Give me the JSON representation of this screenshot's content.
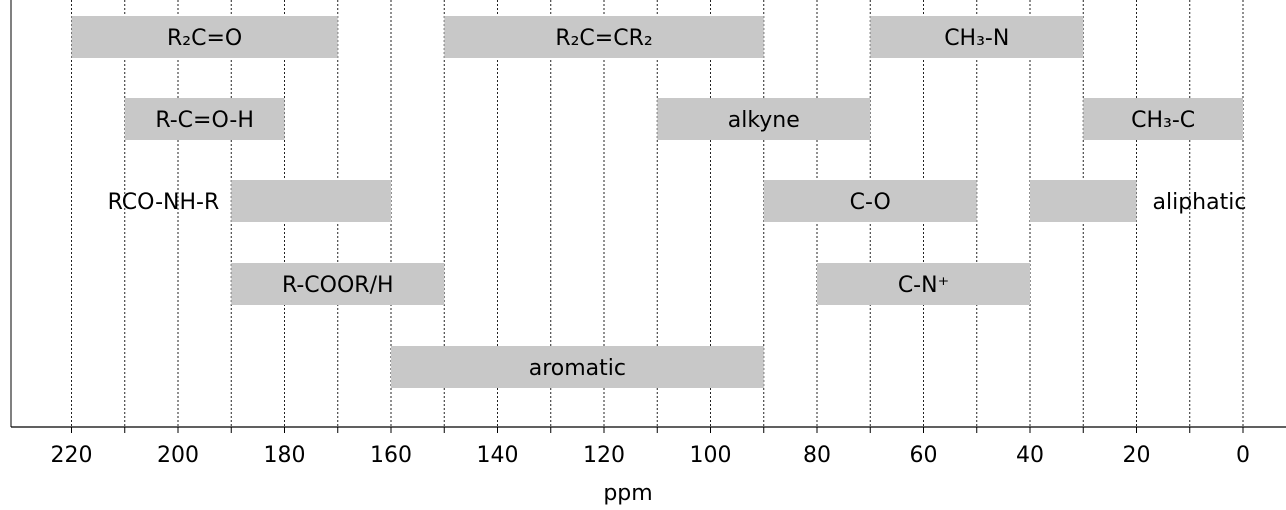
{
  "chart_data": {
    "type": "bar",
    "orientation": "horizontal-range",
    "xlabel": "ppm",
    "xlim": [
      220,
      0
    ],
    "x_reversed": true,
    "xticks": [
      220,
      200,
      180,
      160,
      140,
      120,
      100,
      80,
      60,
      40,
      20,
      0
    ],
    "bar_color": "#c8c8c8",
    "bars": [
      {
        "name": "R2C=O",
        "label": "R₂C=O",
        "start": 220,
        "end": 170,
        "row": 0
      },
      {
        "name": "R2C=CR2",
        "label": "R₂C=CR₂",
        "start": 150,
        "end": 90,
        "row": 0
      },
      {
        "name": "CH3-N",
        "label": "CH₃-N",
        "start": 70,
        "end": 30,
        "row": 0
      },
      {
        "name": "R-C=O-H",
        "label": "R-C=O-H",
        "start": 210,
        "end": 180,
        "row": 1
      },
      {
        "name": "alkyne",
        "label": "alkyne",
        "start": 110,
        "end": 70,
        "row": 1
      },
      {
        "name": "CH3-C",
        "label": "CH₃-C",
        "start": 30,
        "end": 0,
        "row": 1
      },
      {
        "name": "RCO-NH-R",
        "label": "RCO-NH-R",
        "start": 190,
        "end": 160,
        "row": 2,
        "label_outside": "left"
      },
      {
        "name": "C-O",
        "label": "C-O",
        "start": 90,
        "end": 50,
        "row": 2
      },
      {
        "name": "aliphatic",
        "label": "aliphatic",
        "start": 40,
        "end": 20,
        "row": 2,
        "label_outside": "right"
      },
      {
        "name": "R-COOR/H",
        "label": "R-COOR/H",
        "start": 190,
        "end": 150,
        "row": 3
      },
      {
        "name": "C-N+",
        "label": "C-N⁺",
        "start": 80,
        "end": 40,
        "row": 3
      },
      {
        "name": "aromatic",
        "label": "aromatic",
        "start": 160,
        "end": 90,
        "row": 4
      }
    ]
  }
}
